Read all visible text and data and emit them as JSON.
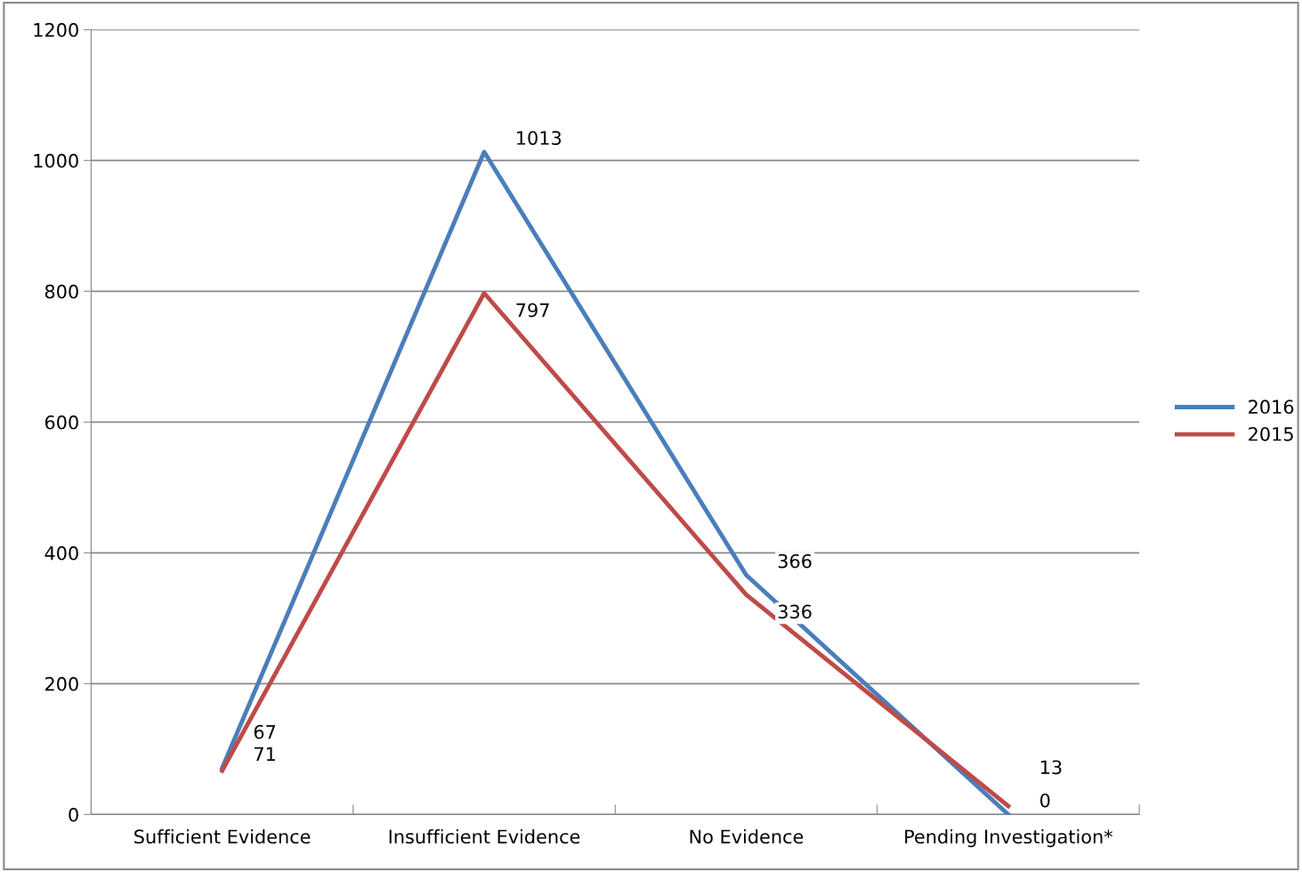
{
  "chart_data": {
    "type": "line",
    "categories": [
      "Sufficient Evidence",
      "Insufficient Evidence",
      "No Evidence",
      "Pending Investigation*"
    ],
    "series": [
      {
        "name": "2016",
        "color": "#4a7ebb",
        "values": [
          71,
          1013,
          366,
          0
        ]
      },
      {
        "name": "2015",
        "color": "#be4b48",
        "values": [
          67,
          797,
          336,
          13
        ]
      }
    ],
    "ylim": [
      0,
      1200
    ],
    "yticks": [
      0,
      200,
      400,
      600,
      800,
      1000,
      1200
    ],
    "grid": "y",
    "legend": "right",
    "data_labels": true,
    "marker": "none",
    "line_style": "solid"
  }
}
